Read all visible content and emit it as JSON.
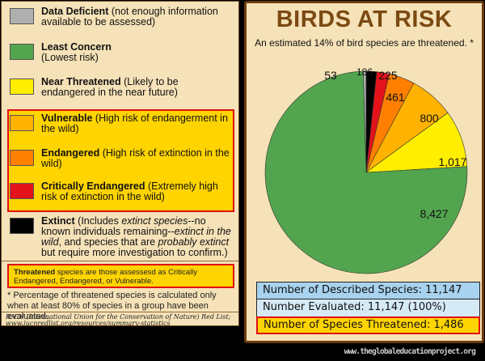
{
  "legend": {
    "items": [
      {
        "key": "data_deficient",
        "name": "Data Deficient",
        "desc": " (not enough information available to be assessed)",
        "color": "#b0b0b0"
      },
      {
        "key": "least_concern",
        "name": "Least Concern",
        "desc": " (Lowest risk)",
        "color": "#52a44e"
      },
      {
        "key": "near_threatened",
        "name": "Near Threatened",
        "desc": " (Likely to be endangered in the near future)",
        "color": "#ffee00"
      },
      {
        "key": "vulnerable",
        "name": "Vulnerable",
        "desc": " (High risk of endangerment in the wild)",
        "color": "#ffb300"
      },
      {
        "key": "endangered",
        "name": "Endangered",
        "desc": " (High risk of extinction in the wild)",
        "color": "#ff8000"
      },
      {
        "key": "critically_endangered",
        "name": "Critically Endangered",
        "desc": " (Extremely high risk of extinction in the wild)",
        "color": "#e3121b"
      },
      {
        "key": "extinct",
        "name": "Extinct",
        "desc_parts": [
          " (Includes ",
          "extinct species",
          "--no known individuals remaining--",
          "extinct in the wild",
          ", and species that are ",
          "probably extinct",
          " but require more investigation to confirm.)"
        ],
        "color": "#000000"
      }
    ],
    "threatened_note_bold": "Threatened",
    "threatened_note": " species are those assessesd as Critically Endangered, Endangered, or Vulnerable.",
    "footnote": "* Percentage of threatened species is calculated only when at least 80% of species in a group have been evaluated.",
    "source": "IUCN (International Union for the Conservation of Nature) Red List; www.iucnredlist.org/resources/summary-statistics"
  },
  "chart_data": {
    "type": "pie",
    "title": "BIRDS AT RISK",
    "subtitle": "An estimated 14% of bird species are threatened. *",
    "categories": [
      "Data Deficient",
      "Extinct",
      "Critically Endangered",
      "Endangered",
      "Vulnerable",
      "Near Threatened",
      "Least Concern"
    ],
    "values": [
      53,
      186,
      225,
      461,
      800,
      1017,
      8427
    ],
    "labels": [
      "53",
      "186",
      "225",
      "461",
      "800",
      "1,017",
      "8,427"
    ],
    "colors": [
      "#b0b0b0",
      "#000000",
      "#e3121b",
      "#ff8000",
      "#ffb300",
      "#ffee00",
      "#52a44e"
    ],
    "start": "12 o'clock, clockwise",
    "legend_position": "left panel"
  },
  "stats": {
    "described": "Number of Described Species: 11,147",
    "evaluated": "Number Evaluated: 11,147 (100%)",
    "threatened": "Number of Species Threatened: 1,486"
  },
  "credit": "www.theglobaleducationproject.org"
}
